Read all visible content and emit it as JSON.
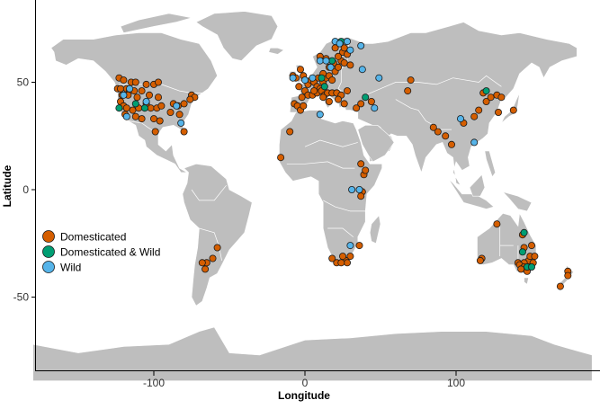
{
  "map": {
    "xlabel": "Longitude",
    "ylabel": "Latitude",
    "x_ticks": [
      -100,
      0,
      100
    ],
    "y_ticks": [
      50,
      0,
      -50
    ],
    "xlim": [
      -180,
      190
    ],
    "ylim": [
      -87,
      87
    ],
    "land_color": "#bebebe",
    "border_color": "#ffffff"
  },
  "legend": {
    "position": "left-middle",
    "items": [
      {
        "label": "Domesticated",
        "color": "#d55e00"
      },
      {
        "label": "Domesticated & Wild",
        "color": "#009e73"
      },
      {
        "label": "Wild",
        "color": "#56b4e9"
      }
    ]
  },
  "chart_data": {
    "type": "scatter",
    "xlabel": "Longitude",
    "ylabel": "Latitude",
    "xlim": [
      -180,
      190
    ],
    "ylim": [
      -87,
      87
    ],
    "series": [
      {
        "name": "Domesticated",
        "color": "#d55e00",
        "points": [
          [
            -123,
            52
          ],
          [
            -120,
            51
          ],
          [
            -115,
            50
          ],
          [
            -112,
            50
          ],
          [
            -105,
            49
          ],
          [
            -100,
            49
          ],
          [
            -97,
            50
          ],
          [
            -124,
            47
          ],
          [
            -122,
            47
          ],
          [
            -118,
            47
          ],
          [
            -116,
            46
          ],
          [
            -113,
            46
          ],
          [
            -108,
            46
          ],
          [
            -121,
            44
          ],
          [
            -117,
            44
          ],
          [
            -111,
            43
          ],
          [
            -103,
            44
          ],
          [
            -97,
            43
          ],
          [
            -122,
            41
          ],
          [
            -120,
            39
          ],
          [
            -118,
            38
          ],
          [
            -114,
            37
          ],
          [
            -110,
            38
          ],
          [
            -105,
            40
          ],
          [
            -102,
            38
          ],
          [
            -98,
            38
          ],
          [
            -95,
            39
          ],
          [
            -119,
            35
          ],
          [
            -112,
            34
          ],
          [
            -108,
            33
          ],
          [
            -100,
            33
          ],
          [
            -96,
            32
          ],
          [
            -87,
            40
          ],
          [
            -84,
            39
          ],
          [
            -80,
            40
          ],
          [
            -75,
            44
          ],
          [
            -73,
            43
          ],
          [
            -76,
            42
          ],
          [
            -89,
            36
          ],
          [
            -83,
            35
          ],
          [
            -80,
            27
          ],
          [
            -99,
            27
          ],
          [
            -8,
            53
          ],
          [
            -6,
            52
          ],
          [
            -3,
            56
          ],
          [
            -1,
            53
          ],
          [
            2,
            49
          ],
          [
            4,
            51
          ],
          [
            6,
            50
          ],
          [
            8,
            48
          ],
          [
            10,
            47
          ],
          [
            12,
            50
          ],
          [
            14,
            52
          ],
          [
            16,
            53
          ],
          [
            18,
            51
          ],
          [
            20,
            55
          ],
          [
            22,
            57
          ],
          [
            24,
            60
          ],
          [
            26,
            59
          ],
          [
            30,
            58
          ],
          [
            -4,
            48
          ],
          [
            0,
            46
          ],
          [
            2,
            44
          ],
          [
            5,
            44
          ],
          [
            8,
            45
          ],
          [
            11,
            46
          ],
          [
            13,
            44
          ],
          [
            15,
            45
          ],
          [
            18,
            45
          ],
          [
            21,
            45
          ],
          [
            24,
            44
          ],
          [
            28,
            46
          ],
          [
            -7,
            40
          ],
          [
            -5,
            39
          ],
          [
            -3,
            37
          ],
          [
            -1,
            39
          ],
          [
            12,
            43
          ],
          [
            16,
            41
          ],
          [
            22,
            42
          ],
          [
            26,
            40
          ],
          [
            34,
            38
          ],
          [
            37,
            40
          ],
          [
            44,
            41
          ],
          [
            -2,
            43
          ],
          [
            6,
            46
          ],
          [
            9,
            52
          ],
          [
            12,
            54
          ],
          [
            16,
            57
          ],
          [
            19,
            59
          ],
          [
            22,
            62
          ],
          [
            25,
            64
          ],
          [
            28,
            63
          ],
          [
            10,
            62
          ],
          [
            14,
            61
          ],
          [
            20,
            66
          ],
          [
            26,
            66
          ],
          [
            68,
            46
          ],
          [
            70,
            51
          ],
          [
            88,
            27
          ],
          [
            93,
            25
          ],
          [
            105,
            31
          ],
          [
            112,
            34
          ],
          [
            115,
            37
          ],
          [
            118,
            45
          ],
          [
            120,
            41
          ],
          [
            123,
            43
          ],
          [
            127,
            44
          ],
          [
            128,
            36
          ],
          [
            130,
            43
          ],
          [
            138,
            37
          ],
          [
            85,
            29
          ],
          [
            97,
            21
          ],
          [
            -10,
            27
          ],
          [
            -16,
            15
          ],
          [
            39,
            7
          ],
          [
            40,
            9
          ],
          [
            37,
            12
          ],
          [
            38,
            -1
          ],
          [
            37,
            -3
          ],
          [
            36,
            -26
          ],
          [
            30,
            -31
          ],
          [
            27,
            -33
          ],
          [
            28,
            -34
          ],
          [
            21,
            -34
          ],
          [
            18,
            -32
          ],
          [
            25,
            -31
          ],
          [
            24,
            -34
          ],
          [
            -58,
            -27
          ],
          [
            -61,
            -32
          ],
          [
            -65,
            -34
          ],
          [
            -68,
            -34
          ],
          [
            -66,
            -37
          ],
          [
            127,
            -16
          ],
          [
            117,
            -32
          ],
          [
            116,
            -33
          ],
          [
            144,
            -21
          ],
          [
            145,
            -27
          ],
          [
            148,
            -33
          ],
          [
            150,
            -26
          ],
          [
            149,
            -31
          ],
          [
            151,
            -34
          ],
          [
            145,
            -34
          ],
          [
            141,
            -34
          ],
          [
            142,
            -35
          ],
          [
            145,
            -36
          ],
          [
            147,
            -38
          ],
          [
            143,
            -37
          ],
          [
            152,
            -31
          ],
          [
            174,
            -38
          ],
          [
            174,
            -40
          ],
          [
            169,
            -45
          ]
        ]
      },
      {
        "name": "Domesticated & Wild",
        "color": "#009e73",
        "points": [
          [
            -123,
            38
          ],
          [
            -112,
            40
          ],
          [
            -106,
            38
          ],
          [
            11,
            52
          ],
          [
            18,
            60
          ],
          [
            24,
            69
          ],
          [
            13,
            48
          ],
          [
            40,
            43
          ],
          [
            120,
            46
          ],
          [
            145,
            -20
          ],
          [
            144,
            -29
          ],
          [
            147,
            -36
          ],
          [
            150,
            -36
          ]
        ]
      },
      {
        "name": "Wild",
        "color": "#56b4e9",
        "points": [
          [
            -120,
            44
          ],
          [
            -116,
            47
          ],
          [
            -105,
            41
          ],
          [
            -118,
            34
          ],
          [
            -85,
            39
          ],
          [
            -82,
            31
          ],
          [
            -8,
            52
          ],
          [
            0,
            51
          ],
          [
            5,
            52
          ],
          [
            10,
            60
          ],
          [
            14,
            60
          ],
          [
            17,
            57
          ],
          [
            20,
            69
          ],
          [
            23,
            68
          ],
          [
            28,
            69
          ],
          [
            30,
            65
          ],
          [
            37,
            67
          ],
          [
            38,
            56
          ],
          [
            49,
            52
          ],
          [
            46,
            38
          ],
          [
            10,
            35
          ],
          [
            103,
            33
          ],
          [
            112,
            22
          ],
          [
            31,
            0
          ],
          [
            36,
            0
          ],
          [
            30,
            -26
          ]
        ]
      }
    ]
  }
}
